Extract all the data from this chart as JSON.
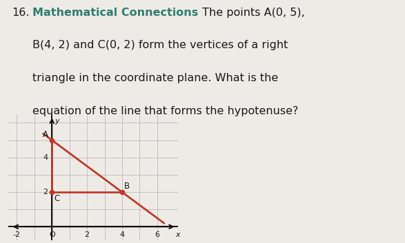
{
  "bg_color": "#eeebe6",
  "text_color": "#1a1a1a",
  "bold_label_color": "#2e7d6e",
  "number_label": "16.",
  "bold_label": "Mathematical Connections",
  "rest_line1": " The points A(0, 5),",
  "rest_line2": "B(4, 2) and C(0, 2) form the vertices of a right",
  "rest_line3": "triangle in the coordinate plane. What is the",
  "rest_line4": "equation of the line that forms the hypotenuse?",
  "point_A": [
    0,
    5
  ],
  "point_B": [
    4,
    2
  ],
  "point_C": [
    0,
    2
  ],
  "triangle_color": "#c0392b",
  "triangle_lw": 2.0,
  "dot_color": "#c0392b",
  "label_A": "A",
  "label_B": "B",
  "label_C": "C",
  "graph_xlim": [
    -2.5,
    7.2
  ],
  "graph_ylim": [
    -0.8,
    6.5
  ],
  "graph_bg": "#ffffff",
  "grid_color": "#bbbbbb",
  "axis_color": "#111111",
  "font_size_text": 11.5,
  "font_size_graph": 8
}
